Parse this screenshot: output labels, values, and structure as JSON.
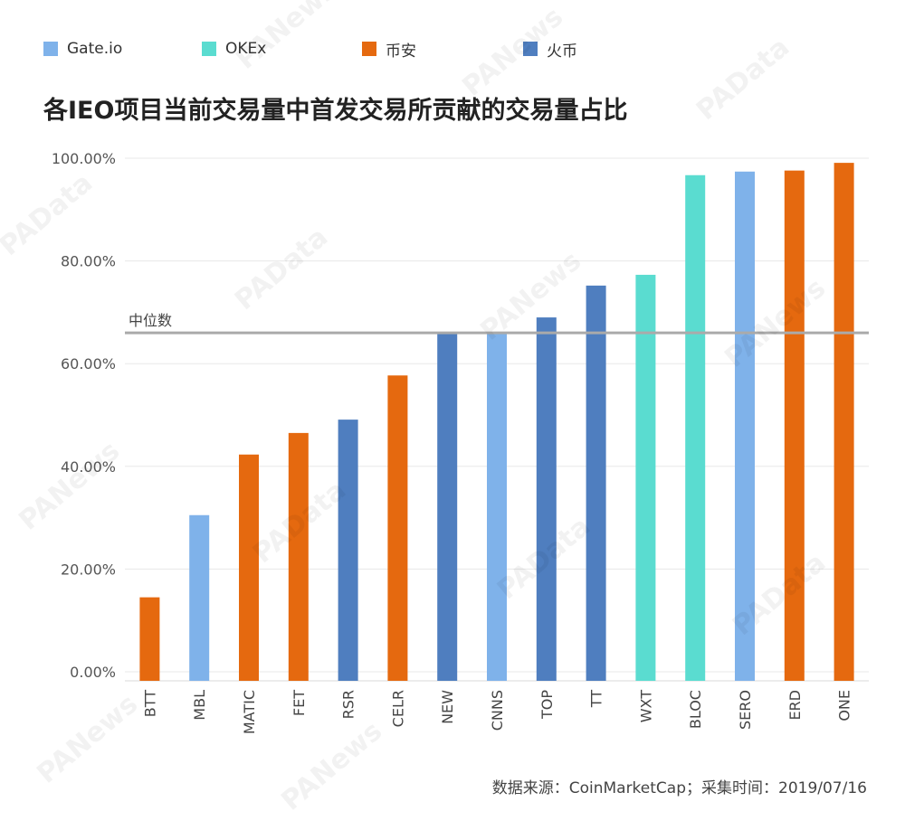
{
  "legend": [
    {
      "name": "Gate.io",
      "color": "#7fb2ea"
    },
    {
      "name": "OKEx",
      "color": "#5adcd0"
    },
    {
      "name": "币安",
      "color": "#e5690f"
    },
    {
      "name": "火币",
      "color": "#4f7ebf"
    }
  ],
  "watermarks": [
    "PANews",
    "PAData"
  ],
  "chart_data": {
    "type": "bar",
    "title": "各IEO项目当前交易量中首发交易所贡献的交易量占比",
    "categories": [
      "BTT",
      "MBL",
      "MATIC",
      "FET",
      "RSR",
      "CELR",
      "NEW",
      "CNNS",
      "TOP",
      "TT",
      "WXT",
      "BLOC",
      "SERO",
      "ERD",
      "ONE"
    ],
    "values": [
      14.5,
      30.5,
      42.3,
      46.5,
      49.1,
      57.7,
      65.8,
      66.0,
      69.0,
      75.2,
      77.3,
      96.7,
      97.4,
      97.6,
      99.1
    ],
    "exchanges": [
      "币安",
      "Gate.io",
      "币安",
      "币安",
      "火币",
      "币安",
      "火币",
      "Gate.io",
      "火币",
      "火币",
      "OKEx",
      "OKEx",
      "Gate.io",
      "币安",
      "币安"
    ],
    "ylim": [
      0,
      100
    ],
    "yticks": [
      0,
      20,
      40,
      60,
      80,
      100
    ],
    "ytick_labels": [
      "0.00%",
      "20.00%",
      "40.00%",
      "60.00%",
      "80.00%",
      "100.00%"
    ],
    "median": {
      "label": "中位数",
      "value": 66.0
    },
    "xlabel": "",
    "ylabel": "",
    "grid": true,
    "legend_position": "top"
  },
  "source": "数据来源：CoinMarketCap；采集时间：2019/07/16"
}
